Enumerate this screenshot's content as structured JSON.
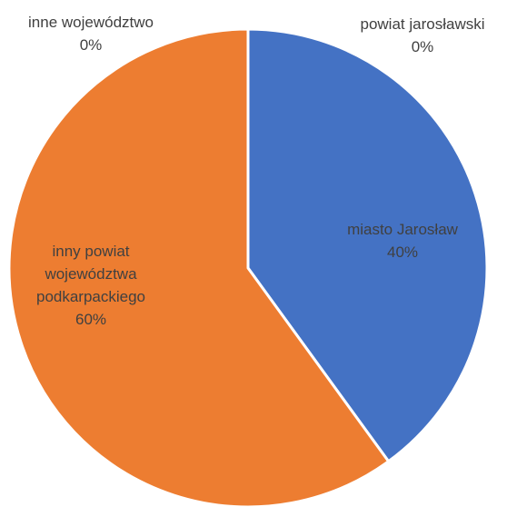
{
  "chart_data": {
    "type": "pie",
    "title": "",
    "slices": [
      {
        "label_lines": [
          "miasto Jarosław"
        ],
        "value": 40,
        "display": "40%",
        "color": "#4472C4"
      },
      {
        "label_lines": [
          "powiat jarosławski"
        ],
        "value": 0,
        "display": "0%",
        "color": "#ED7D31"
      },
      {
        "label_lines": [
          "inny powiat",
          "województwa",
          "podkarpackiego"
        ],
        "value": 60,
        "display": "60%",
        "color": "#ED7D31"
      },
      {
        "label_lines": [
          "inne województwo"
        ],
        "value": 0,
        "display": "0%",
        "color": "#A5A5A5"
      }
    ],
    "start_angle": "top",
    "direction": "clockwise",
    "legend": "none"
  }
}
